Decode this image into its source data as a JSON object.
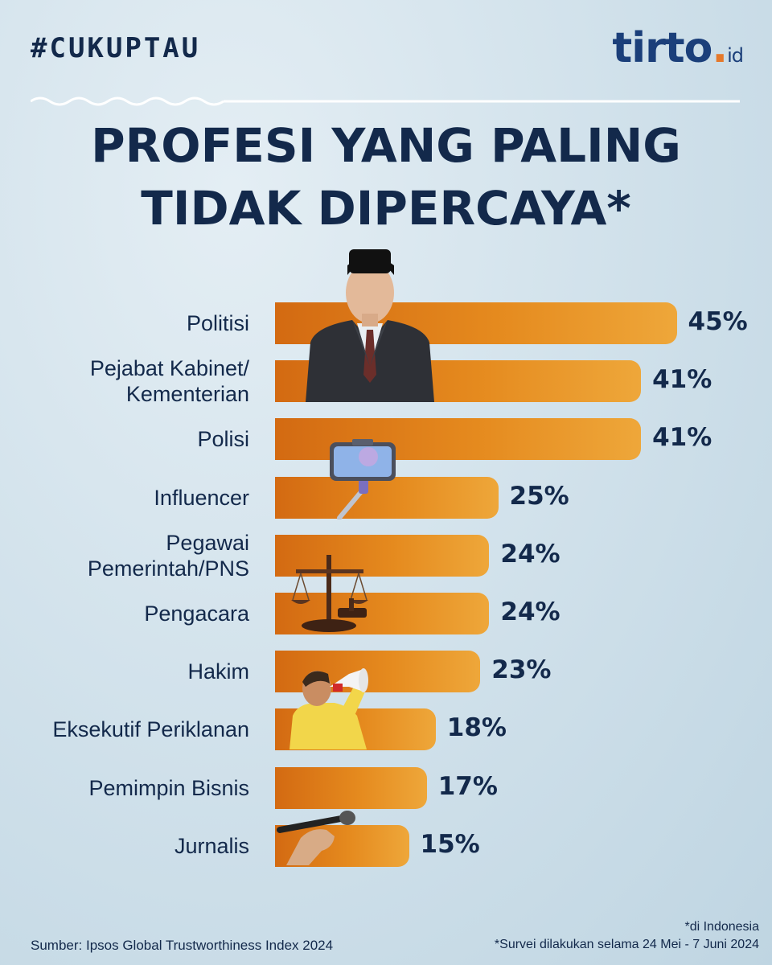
{
  "header": {
    "hashtag": "#CUKUPTAU",
    "logo_main": "tirto",
    "logo_dot": ".",
    "logo_suffix": "id"
  },
  "title_lines": [
    "PROFESI YANG PALING",
    "TIDAK DIPERCAYA*"
  ],
  "chart_data": {
    "type": "bar",
    "orientation": "horizontal",
    "title": "PROFESI YANG PALING TIDAK DIPERCAYA*",
    "categories": [
      "Politisi",
      "Pejabat Kabinet/ Kementerian",
      "Polisi",
      "Influencer",
      "Pegawai Pemerintah/PNS",
      "Pengacara",
      "Hakim",
      "Eksekutif Periklanan",
      "Pemimpin Bisnis",
      "Jurnalis"
    ],
    "values": [
      45,
      41,
      41,
      25,
      24,
      24,
      23,
      18,
      17,
      15
    ],
    "label_lines": [
      [
        "Politisi"
      ],
      [
        "Pejabat Kabinet/",
        "Kementerian"
      ],
      [
        "Polisi"
      ],
      [
        "Influencer"
      ],
      [
        "Pegawai",
        "Pemerintah/PNS"
      ],
      [
        "Pengacara"
      ],
      [
        "Hakim"
      ],
      [
        "Eksekutif Periklanan"
      ],
      [
        "Pemimpin Bisnis"
      ],
      [
        "Jurnalis"
      ]
    ],
    "value_labels": [
      "45%",
      "41%",
      "41%",
      "25%",
      "24%",
      "24%",
      "23%",
      "18%",
      "17%",
      "15%"
    ],
    "unit": "%",
    "bar_color": "#e07a1a",
    "grid": false,
    "legend": "none"
  },
  "footer": {
    "source": "Sumber: Ipsos Global Trustworthiness Index 2024",
    "note_region": "*di Indonesia",
    "note_survey": "*Survei dilakukan selama 24 Mei - 7 Juni 2024"
  },
  "illustrations": [
    "politician-figure",
    "selfie-stick-phone-icon",
    "scales-of-justice-icon",
    "megaphone-person-figure",
    "microphone-hand-icon"
  ],
  "colors": {
    "navy": "#13294b",
    "orange": "#e07a1a",
    "background": "#cfe0ea"
  }
}
